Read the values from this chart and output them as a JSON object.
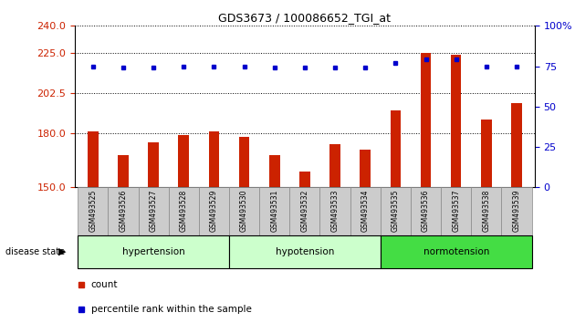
{
  "title": "GDS3673 / 100086652_TGI_at",
  "samples": [
    "GSM493525",
    "GSM493526",
    "GSM493527",
    "GSM493528",
    "GSM493529",
    "GSM493530",
    "GSM493531",
    "GSM493532",
    "GSM493533",
    "GSM493534",
    "GSM493535",
    "GSM493536",
    "GSM493537",
    "GSM493538",
    "GSM493539"
  ],
  "counts": [
    181,
    168,
    175,
    179,
    181,
    178,
    168,
    159,
    174,
    171,
    193,
    225,
    224,
    188,
    197
  ],
  "percentiles": [
    75,
    74,
    74,
    75,
    75,
    75,
    74,
    74,
    74,
    74,
    77,
    79,
    79,
    75,
    75
  ],
  "groups": [
    {
      "label": "hypertension",
      "start": 0,
      "end": 4,
      "color": "#ccffcc"
    },
    {
      "label": "hypotension",
      "start": 5,
      "end": 9,
      "color": "#ccffcc"
    },
    {
      "label": "normotension",
      "start": 10,
      "end": 14,
      "color": "#44dd44"
    }
  ],
  "ylim_left": [
    150,
    240
  ],
  "yticks_left": [
    150,
    180,
    202.5,
    225,
    240
  ],
  "ylim_right": [
    0,
    100
  ],
  "yticks_right": [
    0,
    25,
    50,
    75,
    100
  ],
  "bar_color": "#cc2200",
  "dot_color": "#0000cc",
  "bg_color": "#ffffff",
  "plot_bg": "#ffffff",
  "tick_bg": "#cccccc",
  "legend_count_color": "#cc2200",
  "legend_pct_color": "#0000cc",
  "group_border_color": "#000000",
  "disease_state_text": "disease state"
}
